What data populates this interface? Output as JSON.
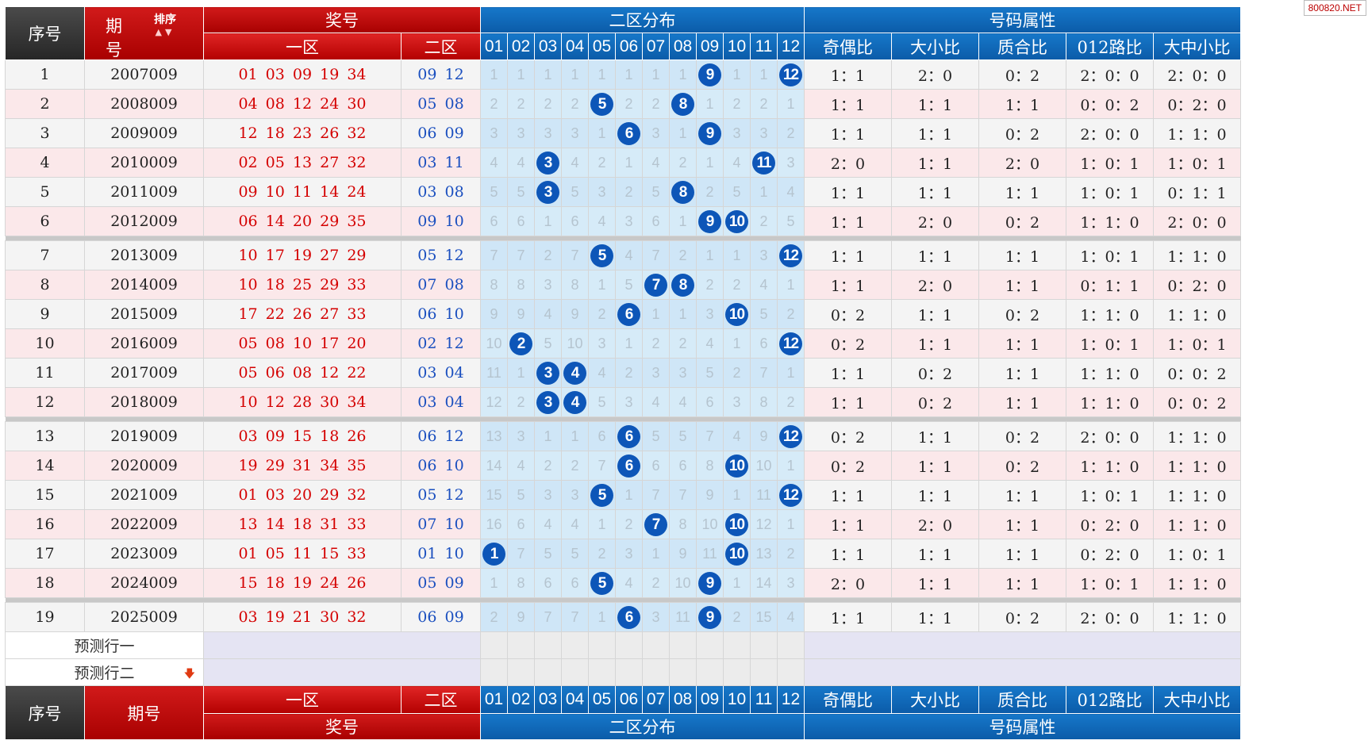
{
  "watermark": "800820.NET",
  "header": {
    "seq": "序号",
    "period_a": "期",
    "period_b": "号",
    "sort": "排序",
    "prize": "奖号",
    "zone2_dist": "二区分布",
    "attrs": "号码属性",
    "zone1": "一区",
    "zone2": "二区",
    "nums": [
      "01",
      "02",
      "03",
      "04",
      "05",
      "06",
      "07",
      "08",
      "09",
      "10",
      "11",
      "12"
    ],
    "attr_cols": [
      "奇偶比",
      "大小比",
      "质合比",
      "012路比",
      "大中小比"
    ]
  },
  "footer": {
    "seq": "序号",
    "period": "期号",
    "zone1": "一区",
    "zone2": "二区",
    "prize": "奖号",
    "zone2_dist": "二区分布",
    "attrs": "号码属性"
  },
  "predict": [
    "预测行一",
    "预测行二"
  ],
  "rows": [
    {
      "seq": "1",
      "period": "2007009",
      "z1": "01 03 09 19 34",
      "z2": "09 12",
      "d": [
        "1",
        "1",
        "1",
        "1",
        "1",
        "1",
        "1",
        "1",
        "9",
        "1",
        "1",
        "12"
      ],
      "hits": [
        8,
        11
      ],
      "a": [
        "1：1",
        "2：0",
        "0：2",
        "2：0：0",
        "2：0：0"
      ]
    },
    {
      "seq": "2",
      "period": "2008009",
      "z1": "04 08 12 24 30",
      "z2": "05 08",
      "d": [
        "2",
        "2",
        "2",
        "2",
        "5",
        "2",
        "2",
        "8",
        "1",
        "2",
        "2",
        "1"
      ],
      "hits": [
        4,
        7
      ],
      "a": [
        "1：1",
        "1：1",
        "1：1",
        "0：0：2",
        "0：2：0"
      ]
    },
    {
      "seq": "3",
      "period": "2009009",
      "z1": "12 18 23 26 32",
      "z2": "06 09",
      "d": [
        "3",
        "3",
        "3",
        "3",
        "1",
        "6",
        "3",
        "1",
        "9",
        "3",
        "3",
        "2"
      ],
      "hits": [
        5,
        8
      ],
      "a": [
        "1：1",
        "1：1",
        "0：2",
        "2：0：0",
        "1：1：0"
      ]
    },
    {
      "seq": "4",
      "period": "2010009",
      "z1": "02 05 13 27 32",
      "z2": "03 11",
      "d": [
        "4",
        "4",
        "3",
        "4",
        "2",
        "1",
        "4",
        "2",
        "1",
        "4",
        "11",
        "3"
      ],
      "hits": [
        2,
        10
      ],
      "a": [
        "2：0",
        "1：1",
        "2：0",
        "1：0：1",
        "1：0：1"
      ]
    },
    {
      "seq": "5",
      "period": "2011009",
      "z1": "09 10 11 14 24",
      "z2": "03 08",
      "d": [
        "5",
        "5",
        "3",
        "5",
        "3",
        "2",
        "5",
        "8",
        "2",
        "5",
        "1",
        "4"
      ],
      "hits": [
        2,
        7
      ],
      "a": [
        "1：1",
        "1：1",
        "1：1",
        "1：0：1",
        "0：1：1"
      ]
    },
    {
      "seq": "6",
      "period": "2012009",
      "z1": "06 14 20 29 35",
      "z2": "09 10",
      "d": [
        "6",
        "6",
        "1",
        "6",
        "4",
        "3",
        "6",
        "1",
        "9",
        "10",
        "2",
        "5"
      ],
      "hits": [
        8,
        9
      ],
      "a": [
        "1：1",
        "2：0",
        "0：2",
        "1：1：0",
        "2：0：0"
      ]
    },
    {
      "seq": "7",
      "period": "2013009",
      "z1": "10 17 19 27 29",
      "z2": "05 12",
      "d": [
        "7",
        "7",
        "2",
        "7",
        "5",
        "4",
        "7",
        "2",
        "1",
        "1",
        "3",
        "12"
      ],
      "hits": [
        4,
        11
      ],
      "a": [
        "1：1",
        "1：1",
        "1：1",
        "1：0：1",
        "1：1：0"
      ]
    },
    {
      "seq": "8",
      "period": "2014009",
      "z1": "10 18 25 29 33",
      "z2": "07 08",
      "d": [
        "8",
        "8",
        "3",
        "8",
        "1",
        "5",
        "7",
        "8",
        "2",
        "2",
        "4",
        "1"
      ],
      "hits": [
        6,
        7
      ],
      "a": [
        "1：1",
        "2：0",
        "1：1",
        "0：1：1",
        "0：2：0"
      ]
    },
    {
      "seq": "9",
      "period": "2015009",
      "z1": "17 22 26 27 33",
      "z2": "06 10",
      "d": [
        "9",
        "9",
        "4",
        "9",
        "2",
        "6",
        "1",
        "1",
        "3",
        "10",
        "5",
        "2"
      ],
      "hits": [
        5,
        9
      ],
      "a": [
        "0：2",
        "1：1",
        "0：2",
        "1：1：0",
        "1：1：0"
      ]
    },
    {
      "seq": "10",
      "period": "2016009",
      "z1": "05 08 10 17 20",
      "z2": "02 12",
      "d": [
        "10",
        "2",
        "5",
        "10",
        "3",
        "1",
        "2",
        "2",
        "4",
        "1",
        "6",
        "12"
      ],
      "hits": [
        1,
        11
      ],
      "a": [
        "0：2",
        "1：1",
        "1：1",
        "1：0：1",
        "1：0：1"
      ]
    },
    {
      "seq": "11",
      "period": "2017009",
      "z1": "05 06 08 12 22",
      "z2": "03 04",
      "d": [
        "11",
        "1",
        "3",
        "4",
        "4",
        "2",
        "3",
        "3",
        "5",
        "2",
        "7",
        "1"
      ],
      "hits": [
        2,
        3
      ],
      "a": [
        "1：1",
        "0：2",
        "1：1",
        "1：1：0",
        "0：0：2"
      ]
    },
    {
      "seq": "12",
      "period": "2018009",
      "z1": "10 12 28 30 34",
      "z2": "03 04",
      "d": [
        "12",
        "2",
        "3",
        "4",
        "5",
        "3",
        "4",
        "4",
        "6",
        "3",
        "8",
        "2"
      ],
      "hits": [
        2,
        3
      ],
      "a": [
        "1：1",
        "0：2",
        "1：1",
        "1：1：0",
        "0：0：2"
      ]
    },
    {
      "seq": "13",
      "period": "2019009",
      "z1": "03 09 15 18 26",
      "z2": "06 12",
      "d": [
        "13",
        "3",
        "1",
        "1",
        "6",
        "6",
        "5",
        "5",
        "7",
        "4",
        "9",
        "12"
      ],
      "hits": [
        5,
        11
      ],
      "a": [
        "0：2",
        "1：1",
        "0：2",
        "2：0：0",
        "1：1：0"
      ]
    },
    {
      "seq": "14",
      "period": "2020009",
      "z1": "19 29 31 34 35",
      "z2": "06 10",
      "d": [
        "14",
        "4",
        "2",
        "2",
        "7",
        "6",
        "6",
        "6",
        "8",
        "10",
        "10",
        "1"
      ],
      "hits": [
        5,
        9
      ],
      "a": [
        "0：2",
        "1：1",
        "0：2",
        "1：1：0",
        "1：1：0"
      ]
    },
    {
      "seq": "15",
      "period": "2021009",
      "z1": "01 03 20 29 32",
      "z2": "05 12",
      "d": [
        "15",
        "5",
        "3",
        "3",
        "5",
        "1",
        "7",
        "7",
        "9",
        "1",
        "11",
        "12"
      ],
      "hits": [
        4,
        11
      ],
      "a": [
        "1：1",
        "1：1",
        "1：1",
        "1：0：1",
        "1：1：0"
      ]
    },
    {
      "seq": "16",
      "period": "2022009",
      "z1": "13 14 18 31 33",
      "z2": "07 10",
      "d": [
        "16",
        "6",
        "4",
        "4",
        "1",
        "2",
        "7",
        "8",
        "10",
        "10",
        "12",
        "1"
      ],
      "hits": [
        6,
        9
      ],
      "a": [
        "1：1",
        "2：0",
        "1：1",
        "0：2：0",
        "1：1：0"
      ]
    },
    {
      "seq": "17",
      "period": "2023009",
      "z1": "01 05 11 15 33",
      "z2": "01 10",
      "d": [
        "1",
        "7",
        "5",
        "5",
        "2",
        "3",
        "1",
        "9",
        "11",
        "10",
        "13",
        "2"
      ],
      "hits": [
        0,
        9
      ],
      "a": [
        "1：1",
        "1：1",
        "1：1",
        "0：2：0",
        "1：0：1"
      ]
    },
    {
      "seq": "18",
      "period": "2024009",
      "z1": "15 18 19 24 26",
      "z2": "05 09",
      "d": [
        "1",
        "8",
        "6",
        "6",
        "5",
        "4",
        "2",
        "10",
        "9",
        "1",
        "14",
        "3"
      ],
      "hits": [
        4,
        8
      ],
      "a": [
        "2：0",
        "1：1",
        "1：1",
        "1：0：1",
        "1：1：0"
      ]
    },
    {
      "seq": "19",
      "period": "2025009",
      "z1": "03 19 21 30 32",
      "z2": "06 09",
      "d": [
        "2",
        "9",
        "7",
        "7",
        "1",
        "6",
        "3",
        "11",
        "9",
        "2",
        "15",
        "4"
      ],
      "hits": [
        5,
        8
      ],
      "a": [
        "1：1",
        "1：1",
        "0：2",
        "2：0：0",
        "1：1：0"
      ]
    }
  ]
}
